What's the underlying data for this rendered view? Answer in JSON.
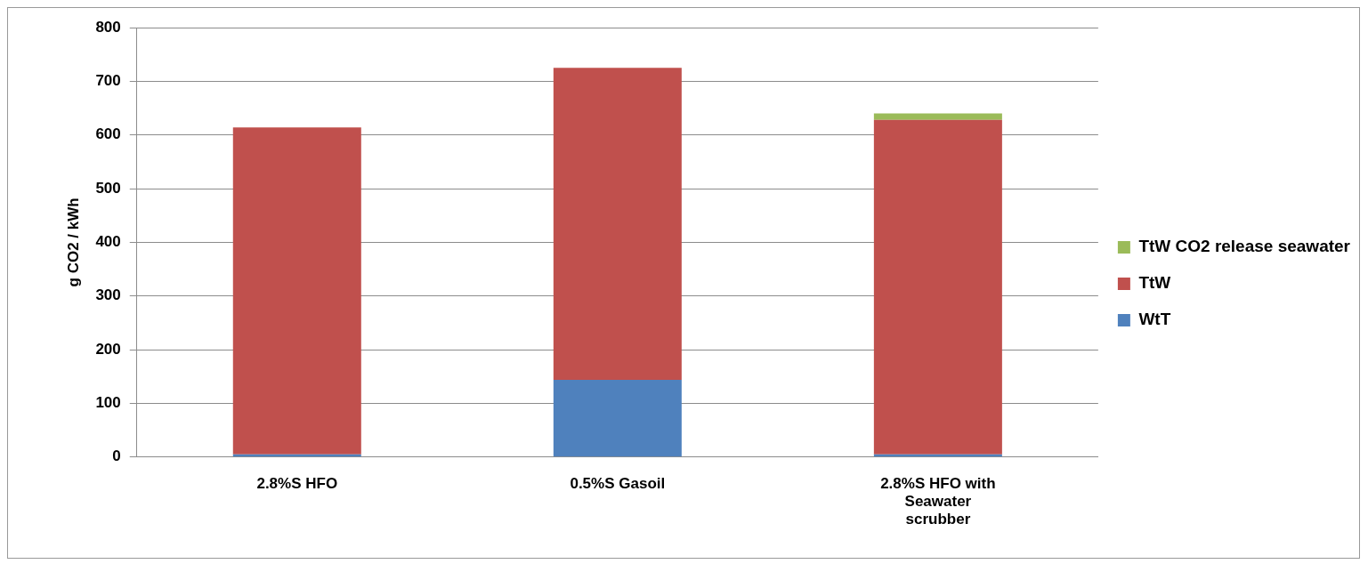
{
  "chart_data": {
    "type": "bar",
    "stacked": true,
    "ylabel": "g CO2 / kWh",
    "categories": [
      "2.8%S HFO",
      "0.5%S Gasoil",
      "2.8%S HFO with Seawater scrubber"
    ],
    "series": [
      {
        "name": "WtT",
        "color": "#4f81bd",
        "values": [
          5,
          144,
          5
        ]
      },
      {
        "name": "TtW",
        "color": "#c0504d",
        "values": [
          609,
          581,
          623
        ]
      },
      {
        "name": "TtW CO2 release seawater",
        "color": "#9bbb59",
        "values": [
          0,
          0,
          12
        ]
      }
    ],
    "ylim": [
      0,
      800
    ],
    "yticks": [
      0,
      100,
      200,
      300,
      400,
      500,
      600,
      700,
      800
    ],
    "grid": "y",
    "legend": "right"
  }
}
